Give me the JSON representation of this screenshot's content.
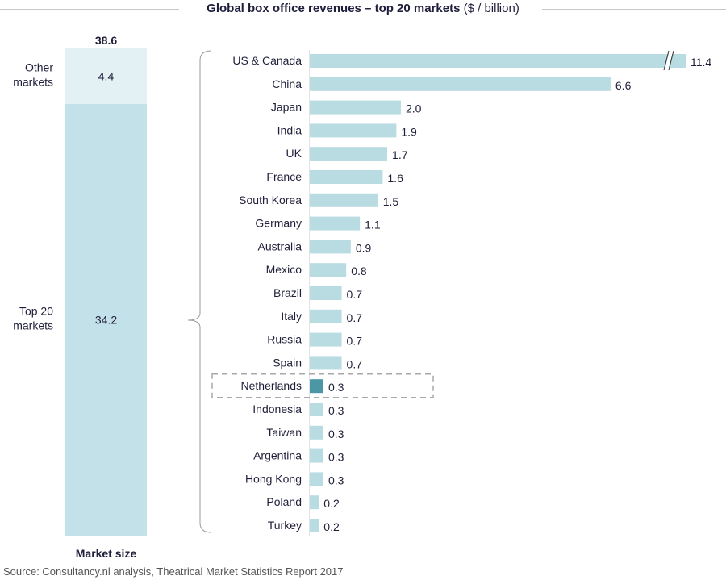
{
  "chart_data": {
    "type": "bar",
    "title": "Global box office revenues – top 20 markets",
    "title_unit": "($ / billion)",
    "stacked_bar": {
      "xlabel": "Market size",
      "total": 38.6,
      "segments": [
        {
          "name": "Top 20 markets",
          "label_lines": [
            "Top 20",
            "markets"
          ],
          "value": 34.2,
          "color": "#c3e1e8"
        },
        {
          "name": "Other markets",
          "label_lines": [
            "Other",
            "markets"
          ],
          "value": 4.4,
          "color": "#e3f1f4"
        }
      ]
    },
    "markets": {
      "categories": [
        "US & Canada",
        "China",
        "Japan",
        "India",
        "UK",
        "France",
        "South Korea",
        "Germany",
        "Australia",
        "Mexico",
        "Brazil",
        "Italy",
        "Russia",
        "Spain",
        "Netherlands",
        "Indonesia",
        "Taiwan",
        "Argentina",
        "Hong Kong",
        "Poland",
        "Turkey"
      ],
      "values": [
        11.4,
        6.6,
        2.0,
        1.9,
        1.7,
        1.6,
        1.5,
        1.1,
        0.9,
        0.8,
        0.7,
        0.7,
        0.7,
        0.7,
        0.3,
        0.3,
        0.3,
        0.3,
        0.3,
        0.2,
        0.2
      ],
      "value_labels": [
        "11.4",
        "6.6",
        "2.0",
        "1.9",
        "1.7",
        "1.6",
        "1.5",
        "1.1",
        "0.9",
        "0.8",
        "0.7",
        "0.7",
        "0.7",
        "0.7",
        "0.3",
        "0.3",
        "0.3",
        "0.3",
        "0.3",
        "0.2",
        "0.2"
      ],
      "highlight": "Netherlands",
      "axis_break": "US & Canada",
      "bar_color": "#b9dce3",
      "highlight_color": "#4b97a6"
    }
  },
  "source": "Source: Consultancy.nl analysis, Theatrical Market Statistics Report 2017"
}
